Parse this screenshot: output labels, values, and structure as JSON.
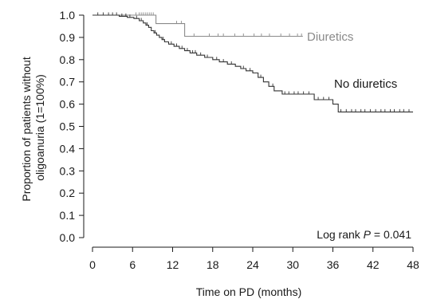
{
  "chart_data": {
    "type": "line",
    "subtype": "kaplan-meier step curve",
    "xlabel": "Time on PD (months)",
    "ylabel_lines": [
      "Proportion of patients without",
      "oligoanuria (1=100%)"
    ],
    "xlim": [
      0,
      48
    ],
    "ylim": [
      0,
      1.0
    ],
    "x_ticks": [
      0,
      6,
      12,
      18,
      24,
      30,
      36,
      42,
      48
    ],
    "y_ticks": [
      0.0,
      0.1,
      0.2,
      0.3,
      0.4,
      0.5,
      0.6,
      0.7,
      0.8,
      0.9,
      1.0
    ],
    "y_tick_labels": [
      "0.0",
      "0.1",
      "0.2",
      "0.3",
      "0.4",
      "0.5",
      "0.6",
      "0.7",
      "0.8",
      "0.9",
      "1.0"
    ],
    "grid": false,
    "annotation": {
      "prefix": "Log rank ",
      "italic": "P",
      "suffix": " = 0.041"
    },
    "series": [
      {
        "name": "Diuretics",
        "color": "#8a8a8a",
        "steps": [
          [
            0,
            1.0
          ],
          [
            9.5,
            0.962
          ],
          [
            13.8,
            0.905
          ],
          [
            31.5,
            0.905
          ]
        ],
        "censor_x": [
          6.5,
          7.0,
          7.3,
          7.6,
          7.9,
          8.2,
          8.5,
          8.8,
          9.1,
          12.6,
          13.3,
          15.2,
          17.5,
          18.8,
          19.6,
          21.3,
          22.6,
          24.2,
          25.3,
          26.5,
          28.2,
          29.5,
          30.7,
          31.3
        ]
      },
      {
        "name": "No diuretics",
        "color": "#333333",
        "steps": [
          [
            0,
            1.0
          ],
          [
            4.0,
            0.995
          ],
          [
            5.2,
            0.99
          ],
          [
            6.2,
            0.985
          ],
          [
            7.0,
            0.975
          ],
          [
            7.6,
            0.965
          ],
          [
            8.0,
            0.955
          ],
          [
            8.4,
            0.945
          ],
          [
            8.8,
            0.93
          ],
          [
            9.2,
            0.92
          ],
          [
            9.6,
            0.91
          ],
          [
            10.0,
            0.9
          ],
          [
            10.4,
            0.89
          ],
          [
            10.8,
            0.88
          ],
          [
            11.4,
            0.87
          ],
          [
            12.2,
            0.86
          ],
          [
            13.0,
            0.85
          ],
          [
            13.8,
            0.84
          ],
          [
            14.6,
            0.83
          ],
          [
            15.6,
            0.82
          ],
          [
            16.8,
            0.81
          ],
          [
            18.0,
            0.8
          ],
          [
            19.0,
            0.79
          ],
          [
            20.2,
            0.78
          ],
          [
            21.4,
            0.77
          ],
          [
            22.2,
            0.76
          ],
          [
            23.0,
            0.75
          ],
          [
            24.0,
            0.74
          ],
          [
            24.8,
            0.72
          ],
          [
            25.6,
            0.7
          ],
          [
            26.4,
            0.68
          ],
          [
            27.2,
            0.66
          ],
          [
            28.4,
            0.645
          ],
          [
            33.2,
            0.62
          ],
          [
            36.0,
            0.6
          ],
          [
            36.8,
            0.565
          ],
          [
            48.0,
            0.565
          ]
        ],
        "censor_x": [
          0.8,
          1.6,
          2.4,
          3.0,
          3.6,
          4.4,
          5.0,
          5.6,
          6.6,
          7.3,
          8.2,
          9.4,
          10.6,
          11.8,
          12.6,
          13.4,
          14.2,
          15.0,
          15.4,
          16.2,
          17.2,
          18.6,
          19.6,
          20.8,
          22.6,
          23.6,
          25.2,
          27.0,
          28.8,
          29.4,
          30.2,
          30.8,
          31.6,
          32.4,
          33.8,
          34.6,
          35.4,
          37.2,
          38.0,
          38.8,
          39.4,
          40.2,
          40.8,
          41.6,
          42.4,
          43.2,
          43.8,
          44.6,
          45.2,
          46.0,
          46.6,
          47.4
        ]
      }
    ]
  }
}
